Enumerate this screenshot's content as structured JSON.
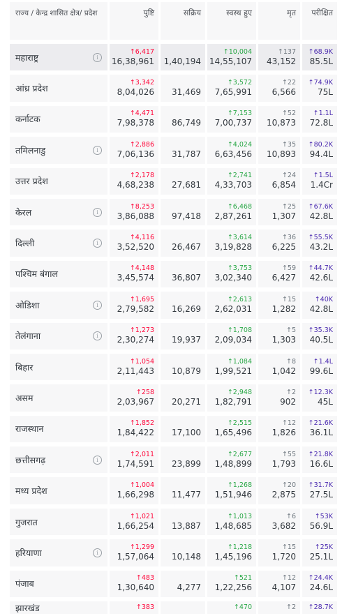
{
  "headers": {
    "state": "राज्य / केन्द्र शासित क्षेत्र/ प्रदेश",
    "confirmed": "पुष्टि",
    "active": "सक्रिय",
    "recovered": "स्वस्थ हुए",
    "deceased": "मृत",
    "tested": "परीक्षित"
  },
  "rows": [
    {
      "state": "महाराष्ट्र",
      "info": true,
      "conf_d": "↑6,417",
      "conf": "16,38,961",
      "active": "1,40,194",
      "rec_d": "↑10,004",
      "rec": "14,55,107",
      "dec_d": "↑137",
      "dec": "43,152",
      "test_d": "↑68.9K",
      "test": "85.5L"
    },
    {
      "state": "आंध्र प्रदेश",
      "info": false,
      "conf_d": "↑3,342",
      "conf": "8,04,026",
      "active": "31,469",
      "rec_d": "↑3,572",
      "rec": "7,65,991",
      "dec_d": "↑22",
      "dec": "6,566",
      "test_d": "↑74.9K",
      "test": "75L"
    },
    {
      "state": "कर्नाटक",
      "info": false,
      "conf_d": "↑4,471",
      "conf": "7,98,378",
      "active": "86,749",
      "rec_d": "↑7,153",
      "rec": "7,00,737",
      "dec_d": "↑52",
      "dec": "10,873",
      "test_d": "↑1.1L",
      "test": "72.8L"
    },
    {
      "state": "तमिलनाडु",
      "info": true,
      "conf_d": "↑2,886",
      "conf": "7,06,136",
      "active": "31,787",
      "rec_d": "↑4,024",
      "rec": "6,63,456",
      "dec_d": "↑35",
      "dec": "10,893",
      "test_d": "↑80.2K",
      "test": "94.4L"
    },
    {
      "state": "उत्तर प्रदेश",
      "info": false,
      "conf_d": "↑2,178",
      "conf": "4,68,238",
      "active": "27,681",
      "rec_d": "↑2,741",
      "rec": "4,33,703",
      "dec_d": "↑24",
      "dec": "6,854",
      "test_d": "↑1.5L",
      "test": "1.4Cr"
    },
    {
      "state": "केरल",
      "info": true,
      "conf_d": "↑8,253",
      "conf": "3,86,088",
      "active": "97,418",
      "rec_d": "↑6,468",
      "rec": "2,87,261",
      "dec_d": "↑25",
      "dec": "1,307",
      "test_d": "↑67.6K",
      "test": "42.8L"
    },
    {
      "state": "दिल्ली",
      "info": true,
      "conf_d": "↑4,116",
      "conf": "3,52,520",
      "active": "26,467",
      "rec_d": "↑3,614",
      "rec": "3,19,828",
      "dec_d": "↑36",
      "dec": "6,225",
      "test_d": "↑55.5K",
      "test": "43.2L"
    },
    {
      "state": "पश्चिम बंगाल",
      "info": false,
      "conf_d": "↑4,148",
      "conf": "3,45,574",
      "active": "36,807",
      "rec_d": "↑3,753",
      "rec": "3,02,340",
      "dec_d": "↑59",
      "dec": "6,427",
      "test_d": "↑44.7K",
      "test": "42.6L"
    },
    {
      "state": "ओडिशा",
      "info": true,
      "conf_d": "↑1,695",
      "conf": "2,79,582",
      "active": "16,269",
      "rec_d": "↑2,613",
      "rec": "2,62,031",
      "dec_d": "↑15",
      "dec": "1,282",
      "test_d": "↑40K",
      "test": "42.8L"
    },
    {
      "state": "तेलंगाना",
      "info": true,
      "conf_d": "↑1,273",
      "conf": "2,30,274",
      "active": "19,937",
      "rec_d": "↑1,708",
      "rec": "2,09,034",
      "dec_d": "↑5",
      "dec": "1,303",
      "test_d": "↑35.3K",
      "test": "40.5L"
    },
    {
      "state": "बिहार",
      "info": false,
      "conf_d": "↑1,054",
      "conf": "2,11,443",
      "active": "10,879",
      "rec_d": "↑1,084",
      "rec": "1,99,521",
      "dec_d": "↑8",
      "dec": "1,042",
      "test_d": "↑1.4L",
      "test": "99.6L"
    },
    {
      "state": "असम",
      "info": false,
      "conf_d": "↑258",
      "conf": "2,03,967",
      "active": "20,271",
      "rec_d": "↑2,948",
      "rec": "1,82,791",
      "dec_d": "↑2",
      "dec": "902",
      "test_d": "↑12.3K",
      "test": "45L"
    },
    {
      "state": "राजस्थान",
      "info": false,
      "conf_d": "↑1,852",
      "conf": "1,84,422",
      "active": "17,100",
      "rec_d": "↑2,515",
      "rec": "1,65,496",
      "dec_d": "↑12",
      "dec": "1,826",
      "test_d": "↑21.6K",
      "test": "36.1L"
    },
    {
      "state": "छत्तीसगढ़",
      "info": true,
      "conf_d": "↑2,011",
      "conf": "1,74,591",
      "active": "23,899",
      "rec_d": "↑2,677",
      "rec": "1,48,899",
      "dec_d": "↑55",
      "dec": "1,793",
      "test_d": "↑21.8K",
      "test": "16.6L"
    },
    {
      "state": "मध्य प्रदेश",
      "info": false,
      "conf_d": "↑1,004",
      "conf": "1,66,298",
      "active": "11,477",
      "rec_d": "↑1,268",
      "rec": "1,51,946",
      "dec_d": "↑20",
      "dec": "2,875",
      "test_d": "↑31.7K",
      "test": "27.5L"
    },
    {
      "state": "गुजरात",
      "info": false,
      "conf_d": "↑1,021",
      "conf": "1,66,254",
      "active": "13,887",
      "rec_d": "↑1,013",
      "rec": "1,48,685",
      "dec_d": "↑6",
      "dec": "3,682",
      "test_d": "↑53K",
      "test": "56.9L"
    },
    {
      "state": "हरियाणा",
      "info": true,
      "conf_d": "↑1,299",
      "conf": "1,57,064",
      "active": "10,148",
      "rec_d": "↑1,218",
      "rec": "1,45,196",
      "dec_d": "↑15",
      "dec": "1,720",
      "test_d": "↑25K",
      "test": "25.1L"
    },
    {
      "state": "पंजाब",
      "info": false,
      "conf_d": "↑483",
      "conf": "1,30,640",
      "active": "4,277",
      "rec_d": "↑521",
      "rec": "1,22,256",
      "dec_d": "↑12",
      "dec": "4,107",
      "test_d": "↑24.4K",
      "test": "24.6L"
    },
    {
      "state": "झारखंड",
      "info": false,
      "conf_d": "↑383",
      "conf": "",
      "active": "",
      "rec_d": "↑470",
      "rec": "",
      "dec_d": "↑2",
      "dec": "",
      "test_d": "↑28.7K",
      "test": ""
    }
  ]
}
